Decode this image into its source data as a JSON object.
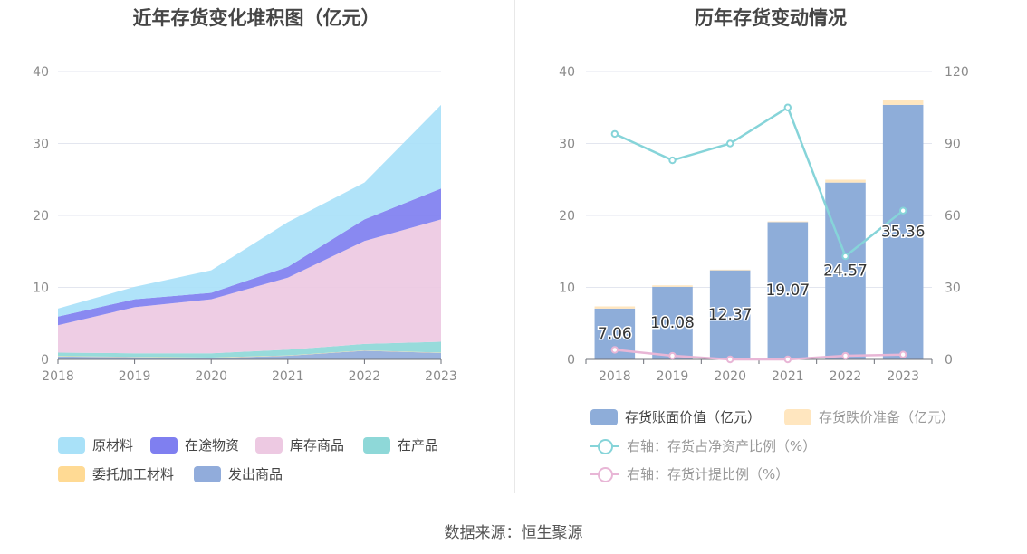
{
  "source": "数据来源：恒生聚源",
  "chart_data": [
    {
      "type": "area",
      "title": "近年存货变化堆积图（亿元）",
      "x": [
        "2018",
        "2019",
        "2020",
        "2021",
        "2022",
        "2023"
      ],
      "ylim": [
        0,
        40
      ],
      "yticks": [
        "0",
        "10",
        "20",
        "30",
        "40"
      ],
      "stacked": true,
      "legend_position": "bottom",
      "series": [
        {
          "name": "发出商品",
          "color": "#91ACDB",
          "values": [
            0.4,
            0.3,
            0.2,
            0.5,
            1.2,
            0.9
          ]
        },
        {
          "name": "委托加工材料",
          "color": "#FFDA94",
          "values": [
            0.05,
            0.05,
            0.05,
            0.05,
            0.05,
            0.05
          ]
        },
        {
          "name": "在产品",
          "color": "#8ED8D8",
          "values": [
            0.5,
            0.5,
            0.6,
            0.8,
            0.9,
            1.5
          ]
        },
        {
          "name": "库存商品",
          "color": "#EDC9E2",
          "values": [
            3.8,
            6.4,
            7.5,
            10.0,
            14.3,
            17.0
          ]
        },
        {
          "name": "在途物资",
          "color": "#7F7FF0",
          "values": [
            1.2,
            1.1,
            0.9,
            1.5,
            3.0,
            4.3
          ]
        },
        {
          "name": "原材料",
          "color": "#A9E1F8",
          "values": [
            1.11,
            1.73,
            3.12,
            6.22,
            5.12,
            11.61
          ]
        }
      ],
      "legend_order": [
        "原材料",
        "在途物资",
        "库存商品",
        "在产品",
        "委托加工材料",
        "发出商品"
      ]
    },
    {
      "type": "bar",
      "title": "历年存货变动情况",
      "categories": [
        "2018",
        "2019",
        "2020",
        "2021",
        "2022",
        "2023"
      ],
      "ylim": [
        0,
        40
      ],
      "yticks": [
        "0",
        "10",
        "20",
        "30",
        "40"
      ],
      "y2lim": [
        0,
        120
      ],
      "y2ticks": [
        "0",
        "30",
        "60",
        "90",
        "120"
      ],
      "legend_position": "bottom",
      "bar_series": [
        {
          "name": "存货账面价值（亿元）",
          "color": "#8EADD9",
          "values": [
            7.06,
            10.08,
            12.37,
            19.07,
            24.57,
            35.36
          ],
          "labels": [
            "7.06",
            "10.08",
            "12.37",
            "19.07",
            "24.57",
            "35.36"
          ]
        },
        {
          "name": "存货跌价准备（亿元）",
          "color": "#FFE6BF",
          "values": [
            0.3,
            0.2,
            0.1,
            0.1,
            0.4,
            0.7
          ]
        }
      ],
      "line_series": [
        {
          "name": "右轴：存货占净资产比例（%）",
          "color": "#86D4D9",
          "values": [
            94,
            83,
            90,
            105,
            43,
            62
          ]
        },
        {
          "name": "右轴：存货计提比例（%）",
          "color": "#E8B6D6",
          "values": [
            4,
            1.5,
            0,
            0,
            1.5,
            2
          ]
        }
      ]
    }
  ]
}
